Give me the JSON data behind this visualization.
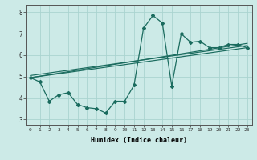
{
  "title": "",
  "xlabel": "Humidex (Indice chaleur)",
  "ylabel": "",
  "bg_color": "#cceae7",
  "grid_color": "#aad4d0",
  "line_color": "#1a6b5e",
  "xlim": [
    -0.5,
    23.5
  ],
  "ylim": [
    2.75,
    8.35
  ],
  "yticks": [
    3,
    4,
    5,
    6,
    7,
    8
  ],
  "xticks": [
    0,
    1,
    2,
    3,
    4,
    5,
    6,
    7,
    8,
    9,
    10,
    11,
    12,
    13,
    14,
    15,
    16,
    17,
    18,
    19,
    20,
    21,
    22,
    23
  ],
  "main_line_x": [
    0,
    1,
    2,
    3,
    4,
    5,
    6,
    7,
    8,
    9,
    10,
    11,
    12,
    13,
    14,
    15,
    16,
    17,
    18,
    19,
    20,
    21,
    22,
    23
  ],
  "main_line_y": [
    4.95,
    4.75,
    3.85,
    4.15,
    4.25,
    3.7,
    3.55,
    3.5,
    3.3,
    3.85,
    3.85,
    4.6,
    7.25,
    7.85,
    7.5,
    4.55,
    7.0,
    6.6,
    6.65,
    6.35,
    6.35,
    6.5,
    6.5,
    6.35
  ],
  "trend1_x": [
    0,
    23
  ],
  "trend1_y": [
    4.95,
    6.35
  ],
  "trend2_x": [
    0,
    23
  ],
  "trend2_y": [
    4.95,
    6.55
  ],
  "trend3_x": [
    0,
    23
  ],
  "trend3_y": [
    5.05,
    6.45
  ]
}
